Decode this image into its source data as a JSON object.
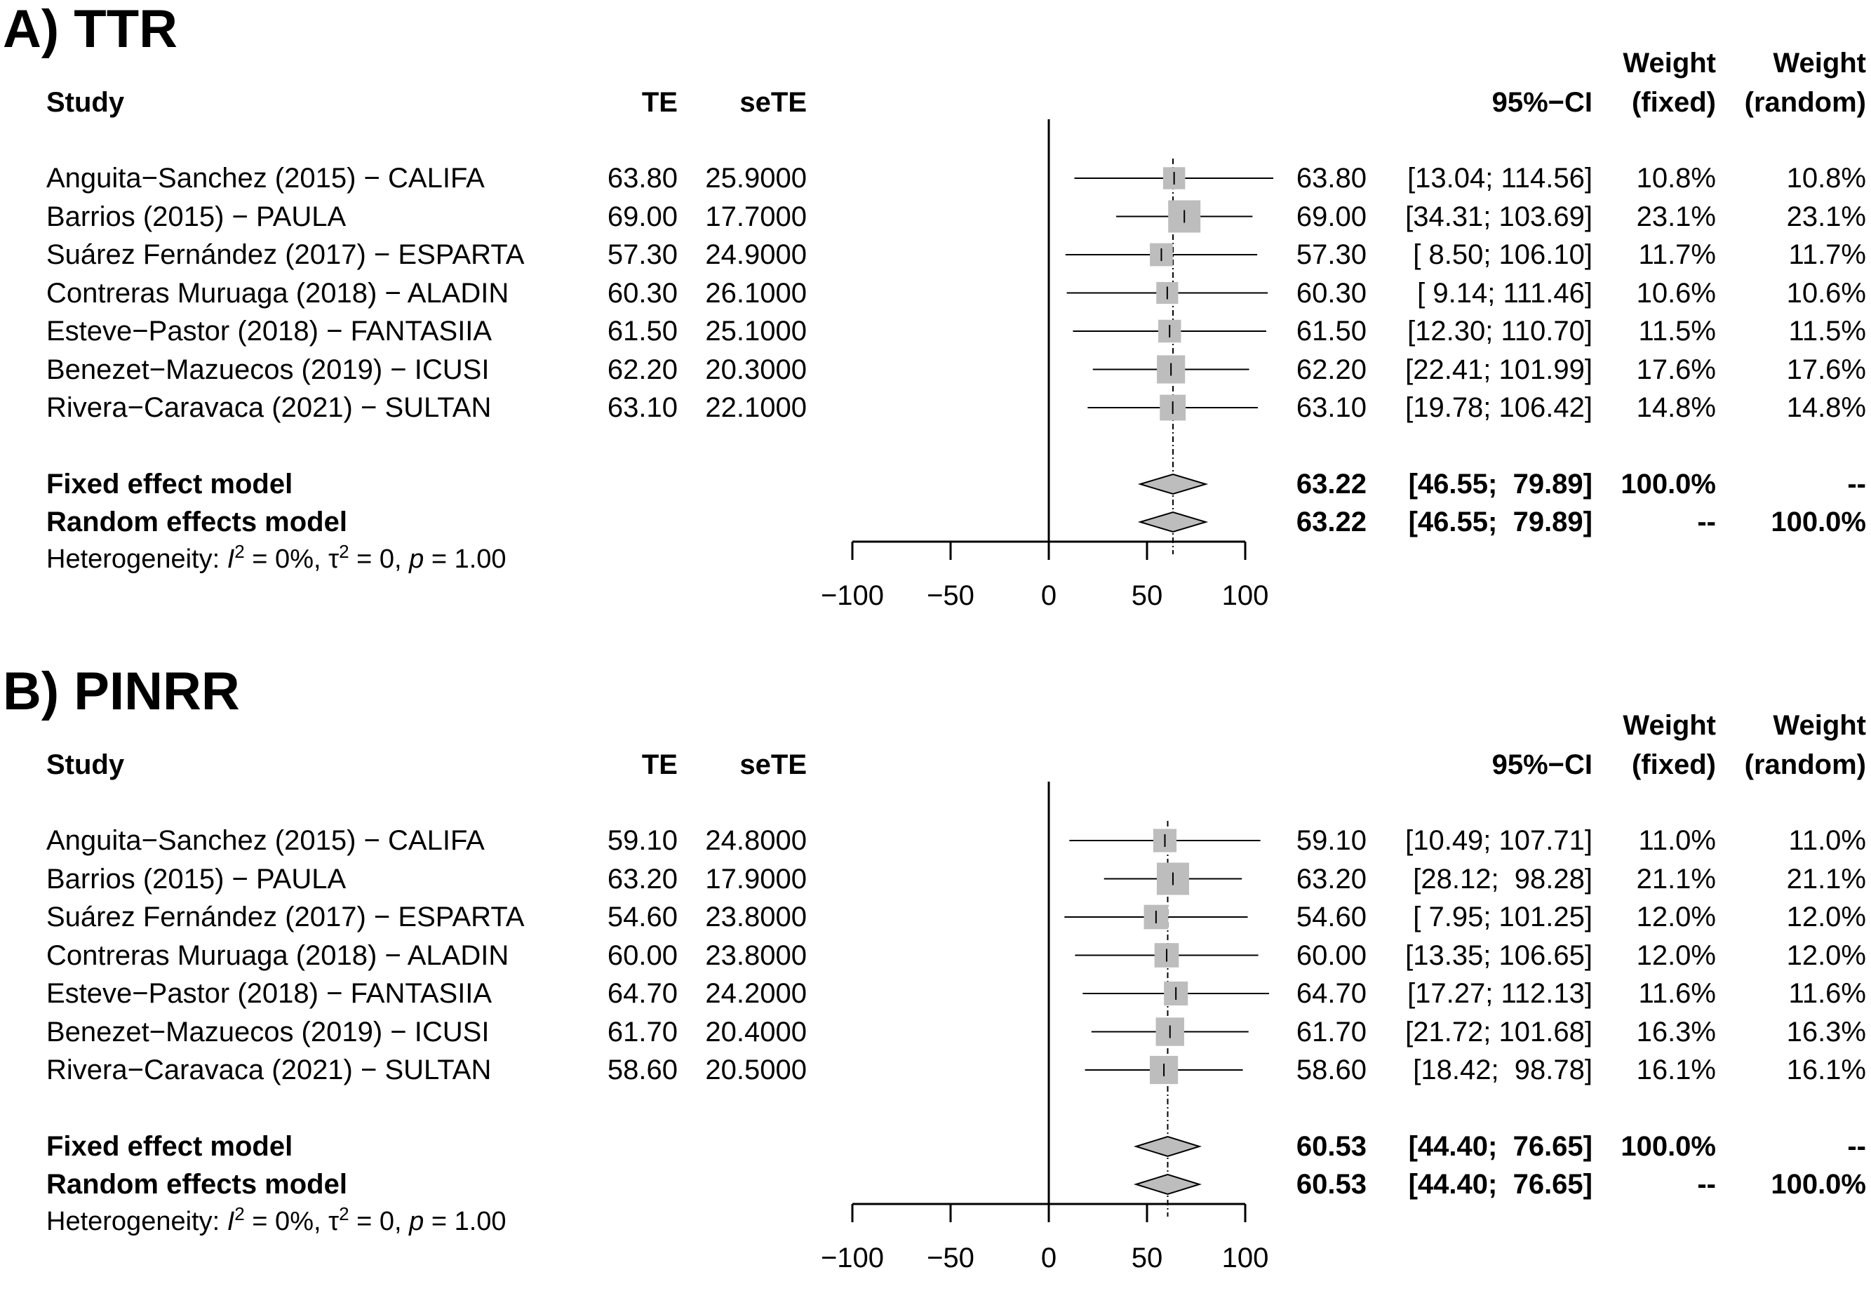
{
  "chart_data": [
    {
      "type": "forest",
      "panel_label": "A) TTR",
      "headers": {
        "study": "Study",
        "te": "TE",
        "sete": "seTE",
        "ci": "95%−CI",
        "weight": "Weight",
        "fixed": "(fixed)",
        "random": "(random)"
      },
      "studies": [
        {
          "name": "Anguita−Sanchez (2015) − CALIFA",
          "te": 63.8,
          "te_text": "63.80",
          "sete_text": "25.9000",
          "lower": 13.04,
          "upper": 114.56,
          "ci_text": "[13.04; 114.56]",
          "w_fixed": "10.8%",
          "w_random": "10.8%",
          "weight": 10.8
        },
        {
          "name": "Barrios (2015) − PAULA",
          "te": 69.0,
          "te_text": "69.00",
          "sete_text": "17.7000",
          "lower": 34.31,
          "upper": 103.69,
          "ci_text": "[34.31; 103.69]",
          "w_fixed": "23.1%",
          "w_random": "23.1%",
          "weight": 23.1
        },
        {
          "name": "Suárez Fernández (2017) − ESPARTA",
          "te": 57.3,
          "te_text": "57.30",
          "sete_text": "24.9000",
          "lower": 8.5,
          "upper": 106.1,
          "ci_text": "[ 8.50; 106.10]",
          "w_fixed": "11.7%",
          "w_random": "11.7%",
          "weight": 11.7
        },
        {
          "name": "Contreras Muruaga (2018) − ALADIN",
          "te": 60.3,
          "te_text": "60.30",
          "sete_text": "26.1000",
          "lower": 9.14,
          "upper": 111.46,
          "ci_text": "[ 9.14; 111.46]",
          "w_fixed": "10.6%",
          "w_random": "10.6%",
          "weight": 10.6
        },
        {
          "name": "Esteve−Pastor (2018) − FANTASIIA",
          "te": 61.5,
          "te_text": "61.50",
          "sete_text": "25.1000",
          "lower": 12.3,
          "upper": 110.7,
          "ci_text": "[12.30; 110.70]",
          "w_fixed": "11.5%",
          "w_random": "11.5%",
          "weight": 11.5
        },
        {
          "name": "Benezet−Mazuecos (2019) − ICUSI",
          "te": 62.2,
          "te_text": "62.20",
          "sete_text": "20.3000",
          "lower": 22.41,
          "upper": 101.99,
          "ci_text": "[22.41; 101.99]",
          "w_fixed": "17.6%",
          "w_random": "17.6%",
          "weight": 17.6
        },
        {
          "name": "Rivera−Caravaca (2021) − SULTAN",
          "te": 63.1,
          "te_text": "63.10",
          "sete_text": "22.1000",
          "lower": 19.78,
          "upper": 106.42,
          "ci_text": "[19.78; 106.42]",
          "w_fixed": "14.8%",
          "w_random": "14.8%",
          "weight": 14.8
        }
      ],
      "fixed": {
        "label": "Fixed effect model",
        "est": 63.22,
        "lower": 46.55,
        "upper": 79.89,
        "est_text": "63.22",
        "ci_text": "[46.55;  79.89]",
        "w_fixed": "100.0%",
        "w_random": "--"
      },
      "random": {
        "label": "Random effects model",
        "est": 63.22,
        "lower": 46.55,
        "upper": 79.89,
        "est_text": "63.22",
        "ci_text": "[46.55;  79.89]",
        "w_fixed": "--",
        "w_random": "100.0%"
      },
      "heterogeneity": {
        "prefix": "Heterogeneity: ",
        "i_symbol": "I",
        "i_exp": "2",
        "i_val": " = 0%, ",
        "tau_symbol": "τ",
        "tau_exp": "2",
        "tau_val": " = 0, ",
        "p_symbol": "p",
        "p_val": " = 1.00"
      },
      "x_axis": {
        "min": -100,
        "max": 100,
        "ticks": [
          -100,
          -50,
          0,
          50,
          100
        ],
        "tick_labels": [
          "−100",
          "−50",
          "0",
          "50",
          "100"
        ]
      }
    },
    {
      "type": "forest",
      "panel_label": "B) PINRR",
      "headers": {
        "study": "Study",
        "te": "TE",
        "sete": "seTE",
        "ci": "95%−CI",
        "weight": "Weight",
        "fixed": "(fixed)",
        "random": "(random)"
      },
      "studies": [
        {
          "name": "Anguita−Sanchez (2015) − CALIFA",
          "te": 59.1,
          "te_text": "59.10",
          "sete_text": "24.8000",
          "lower": 10.49,
          "upper": 107.71,
          "ci_text": "[10.49; 107.71]",
          "w_fixed": "11.0%",
          "w_random": "11.0%",
          "weight": 11.0
        },
        {
          "name": "Barrios (2015) − PAULA",
          "te": 63.2,
          "te_text": "63.20",
          "sete_text": "17.9000",
          "lower": 28.12,
          "upper": 98.28,
          "ci_text": "[28.12;  98.28]",
          "w_fixed": "21.1%",
          "w_random": "21.1%",
          "weight": 21.1
        },
        {
          "name": "Suárez Fernández (2017) − ESPARTA",
          "te": 54.6,
          "te_text": "54.60",
          "sete_text": "23.8000",
          "lower": 7.95,
          "upper": 101.25,
          "ci_text": "[ 7.95; 101.25]",
          "w_fixed": "12.0%",
          "w_random": "12.0%",
          "weight": 12.0
        },
        {
          "name": "Contreras Muruaga (2018) − ALADIN",
          "te": 60.0,
          "te_text": "60.00",
          "sete_text": "23.8000",
          "lower": 13.35,
          "upper": 106.65,
          "ci_text": "[13.35; 106.65]",
          "w_fixed": "12.0%",
          "w_random": "12.0%",
          "weight": 12.0
        },
        {
          "name": "Esteve−Pastor (2018) − FANTASIIA",
          "te": 64.7,
          "te_text": "64.70",
          "sete_text": "24.2000",
          "lower": 17.27,
          "upper": 112.13,
          "ci_text": "[17.27; 112.13]",
          "w_fixed": "11.6%",
          "w_random": "11.6%",
          "weight": 11.6
        },
        {
          "name": "Benezet−Mazuecos (2019) − ICUSI",
          "te": 61.7,
          "te_text": "61.70",
          "sete_text": "20.4000",
          "lower": 21.72,
          "upper": 101.68,
          "ci_text": "[21.72; 101.68]",
          "w_fixed": "16.3%",
          "w_random": "16.3%",
          "weight": 16.3
        },
        {
          "name": "Rivera−Caravaca (2021) − SULTAN",
          "te": 58.6,
          "te_text": "58.60",
          "sete_text": "20.5000",
          "lower": 18.42,
          "upper": 98.78,
          "ci_text": "[18.42;  98.78]",
          "w_fixed": "16.1%",
          "w_random": "16.1%",
          "weight": 16.1
        }
      ],
      "fixed": {
        "label": "Fixed effect model",
        "est": 60.53,
        "lower": 44.4,
        "upper": 76.65,
        "est_text": "60.53",
        "ci_text": "[44.40;  76.65]",
        "w_fixed": "100.0%",
        "w_random": "--"
      },
      "random": {
        "label": "Random effects model",
        "est": 60.53,
        "lower": 44.4,
        "upper": 76.65,
        "est_text": "60.53",
        "ci_text": "[44.40;  76.65]",
        "w_fixed": "--",
        "w_random": "100.0%"
      },
      "heterogeneity": {
        "prefix": "Heterogeneity: ",
        "i_symbol": "I",
        "i_exp": "2",
        "i_val": " = 0%, ",
        "tau_symbol": "τ",
        "tau_exp": "2",
        "tau_val": " = 0, ",
        "p_symbol": "p",
        "p_val": " = 1.00"
      },
      "x_axis": {
        "min": -100,
        "max": 100,
        "ticks": [
          -100,
          -50,
          0,
          50,
          100
        ],
        "tick_labels": [
          "−100",
          "−50",
          "0",
          "50",
          "100"
        ]
      }
    }
  ]
}
